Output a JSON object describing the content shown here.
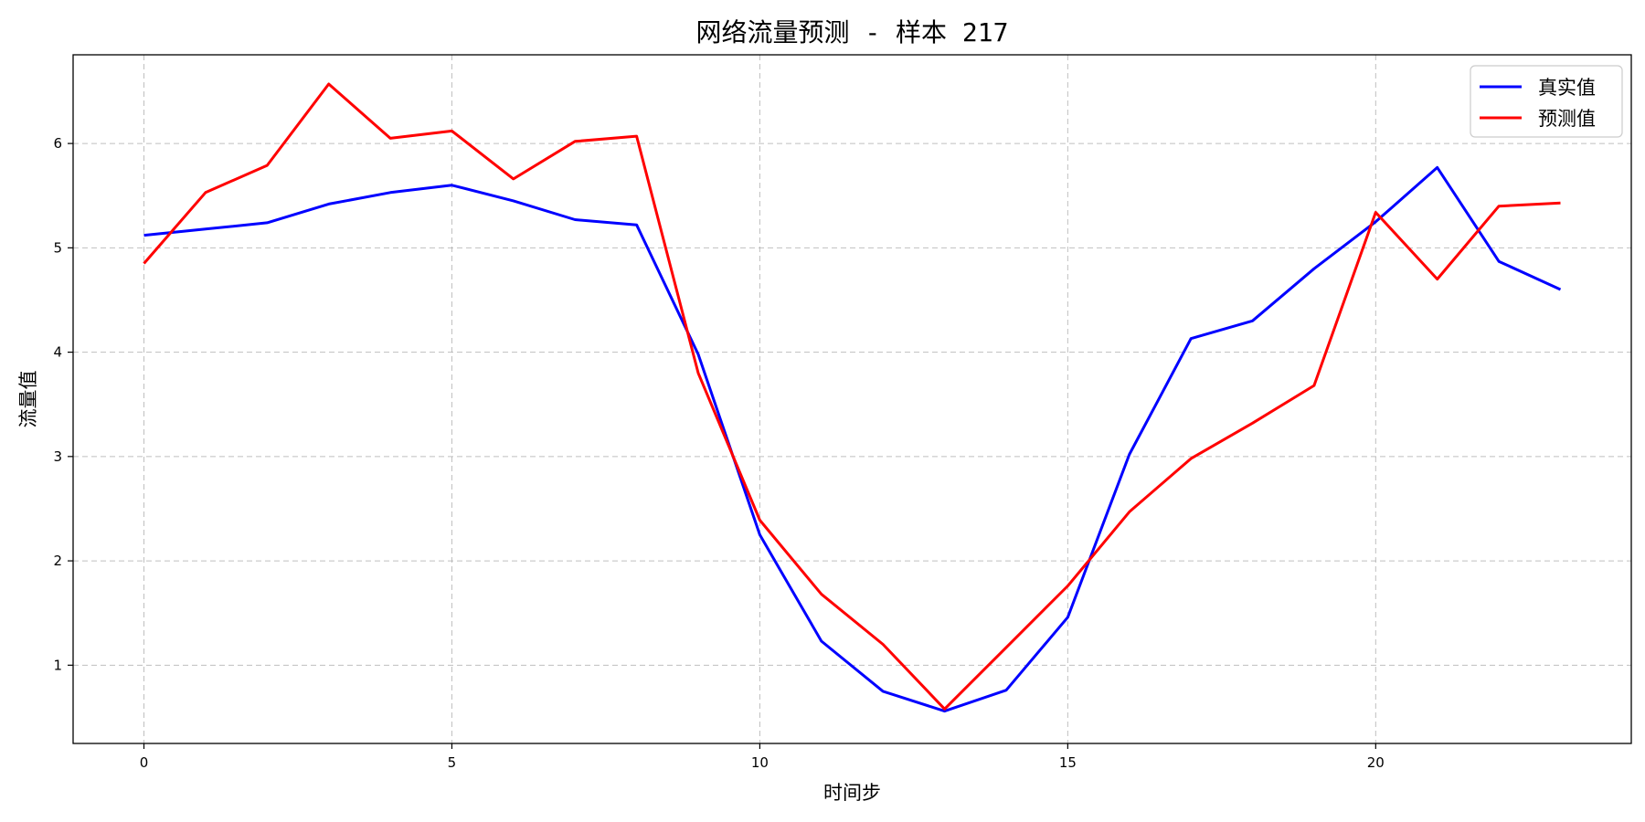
{
  "chart_data": {
    "type": "line",
    "title": "网络流量预测 - 样本 217",
    "xlabel": "时间步",
    "ylabel": "流量值",
    "xlim": [
      -1.15,
      24.15
    ],
    "ylim": [
      0.25,
      6.85
    ],
    "xticks": [
      0,
      5,
      10,
      15,
      20
    ],
    "yticks": [
      1,
      2,
      3,
      4,
      5,
      6
    ],
    "grid": true,
    "legend_position": "top-right",
    "x": [
      0,
      1,
      2,
      3,
      4,
      5,
      6,
      7,
      8,
      9,
      10,
      11,
      12,
      13,
      14,
      15,
      16,
      17,
      18,
      19,
      20,
      21,
      22,
      23
    ],
    "series": [
      {
        "name": "真实值",
        "color": "#0000ff",
        "values": [
          5.12,
          5.18,
          5.24,
          5.42,
          5.53,
          5.6,
          5.45,
          5.27,
          5.22,
          3.98,
          2.25,
          1.23,
          0.75,
          0.56,
          0.76,
          1.46,
          3.02,
          4.13,
          4.3,
          4.8,
          5.25,
          5.77,
          4.87,
          4.6
        ]
      },
      {
        "name": "预测值",
        "color": "#ff0000",
        "values": [
          4.85,
          5.53,
          5.79,
          6.57,
          6.05,
          6.12,
          5.66,
          6.02,
          6.07,
          3.8,
          2.39,
          1.68,
          1.2,
          0.58,
          1.17,
          1.76,
          2.47,
          2.98,
          3.32,
          3.68,
          5.34,
          4.7,
          5.4,
          5.43
        ]
      }
    ]
  }
}
